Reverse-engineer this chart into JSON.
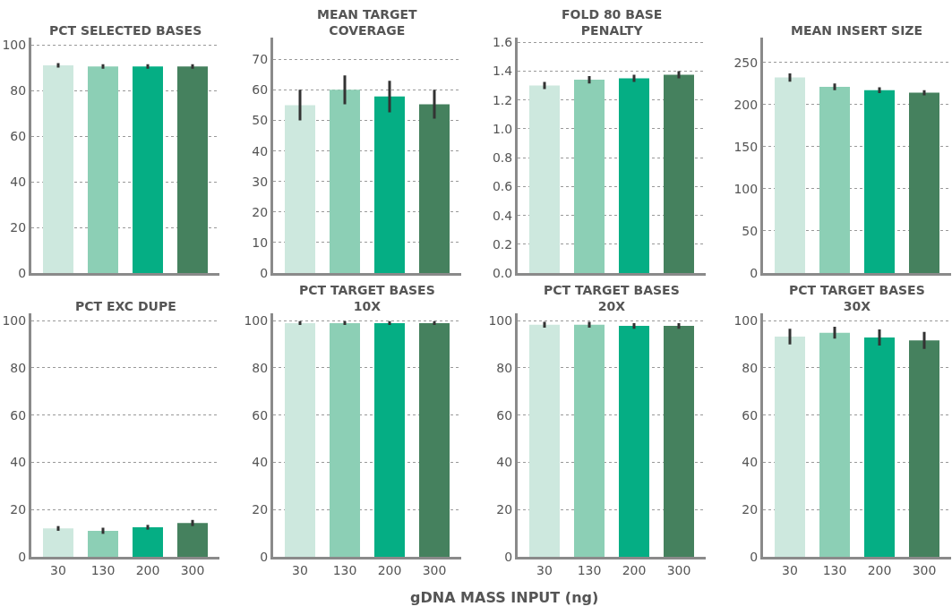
{
  "chart_data": [
    {
      "type": "bar",
      "title": "PCT SELECTED BASES",
      "categories": [
        "30",
        "130",
        "200",
        "300"
      ],
      "colors": [
        "#cde8de",
        "#8ccfb5",
        "#05ae84",
        "#45815e"
      ],
      "values": [
        91,
        90.5,
        90.5,
        90.5
      ],
      "errors": [
        1,
        1,
        1,
        1
      ],
      "ylim": [
        0,
        103
      ],
      "yticks": [
        0,
        20,
        40,
        60,
        80,
        100
      ],
      "grid": "y",
      "tick_labels": "y"
    },
    {
      "type": "bar",
      "title": "MEAN TARGET COVERAGE",
      "categories": [
        "30",
        "130",
        "200",
        "300"
      ],
      "colors": [
        "#cde8de",
        "#8ccfb5",
        "#05ae84",
        "#45815e"
      ],
      "values": [
        55,
        60,
        57.8,
        55.3
      ],
      "errors": [
        5,
        4.7,
        5.2,
        4.7
      ],
      "ylim": [
        0,
        77
      ],
      "yticks": [
        0,
        10,
        20,
        30,
        40,
        50,
        60,
        70
      ],
      "grid": "y",
      "tick_labels": "y"
    },
    {
      "type": "bar",
      "title": "FOLD 80 BASE PENALTY",
      "categories": [
        "30",
        "130",
        "200",
        "300"
      ],
      "colors": [
        "#cde8de",
        "#8ccfb5",
        "#05ae84",
        "#45815e"
      ],
      "values": [
        1.3,
        1.34,
        1.35,
        1.375
      ],
      "errors": [
        0.025,
        0.025,
        0.025,
        0.025
      ],
      "ylim": [
        0,
        1.63
      ],
      "yticks": [
        {
          "value": 0,
          "label": "0.0"
        },
        0.2,
        0.4,
        0.6,
        0.8,
        {
          "value": 1,
          "label": "1.0"
        },
        1.2,
        1.4,
        1.6
      ],
      "grid": "y",
      "tick_labels": "y"
    },
    {
      "type": "bar",
      "title": "MEAN INSERT SIZE",
      "categories": [
        "30",
        "130",
        "200",
        "300"
      ],
      "colors": [
        "#cde8de",
        "#8ccfb5",
        "#05ae84",
        "#45815e"
      ],
      "values": [
        232,
        221,
        217,
        214
      ],
      "errors": [
        5,
        4,
        3.5,
        3
      ],
      "ylim": [
        0,
        279
      ],
      "yticks": [
        0,
        50,
        100,
        150,
        200,
        250
      ],
      "grid": "y",
      "tick_labels": "y"
    },
    {
      "type": "bar",
      "title": "PCT EXC DUPE",
      "categories": [
        "30",
        "130",
        "200",
        "300"
      ],
      "colors": [
        "#cde8de",
        "#8ccfb5",
        "#05ae84",
        "#45815e"
      ],
      "values": [
        12,
        11,
        12.5,
        14.3
      ],
      "errors": [
        1,
        1.3,
        1,
        1.3
      ],
      "ylim": [
        0,
        103
      ],
      "yticks": [
        0,
        20,
        40,
        60,
        80,
        100
      ],
      "grid": "y"
    },
    {
      "type": "bar",
      "title": "PCT TARGET BASES 10X",
      "xlabel": "gDNA MASS INPUT (ng)",
      "categories": [
        "30",
        "130",
        "200",
        "300"
      ],
      "colors": [
        "#cde8de",
        "#8ccfb5",
        "#05ae84",
        "#45815e"
      ],
      "values": [
        99,
        99,
        99,
        99
      ],
      "errors": [
        0.8,
        0.8,
        0.8,
        0.8
      ],
      "ylim": [
        0,
        103
      ],
      "yticks": [
        0,
        20,
        40,
        60,
        80,
        100
      ],
      "grid": "y"
    },
    {
      "type": "bar",
      "title": "PCT TARGET BASES 20X",
      "categories": [
        "30",
        "130",
        "200",
        "300"
      ],
      "colors": [
        "#cde8de",
        "#8ccfb5",
        "#05ae84",
        "#45815e"
      ],
      "values": [
        98.3,
        98.3,
        97.8,
        97.8
      ],
      "errors": [
        1.2,
        1.2,
        1.2,
        1.2
      ],
      "ylim": [
        0,
        103
      ],
      "yticks": [
        0,
        20,
        40,
        60,
        80,
        100
      ],
      "grid": "y"
    },
    {
      "type": "bar",
      "title": "PCT TARGET BASES 30X",
      "categories": [
        "30",
        "130",
        "200",
        "300"
      ],
      "colors": [
        "#cde8de",
        "#8ccfb5",
        "#05ae84",
        "#45815e"
      ],
      "values": [
        93.3,
        94.9,
        92.9,
        91.7
      ],
      "errors": [
        3.3,
        2.5,
        3.4,
        3.6
      ],
      "ylim": [
        0,
        103
      ],
      "yticks": [
        0,
        20,
        40,
        60,
        80,
        100
      ],
      "grid": "y"
    }
  ]
}
